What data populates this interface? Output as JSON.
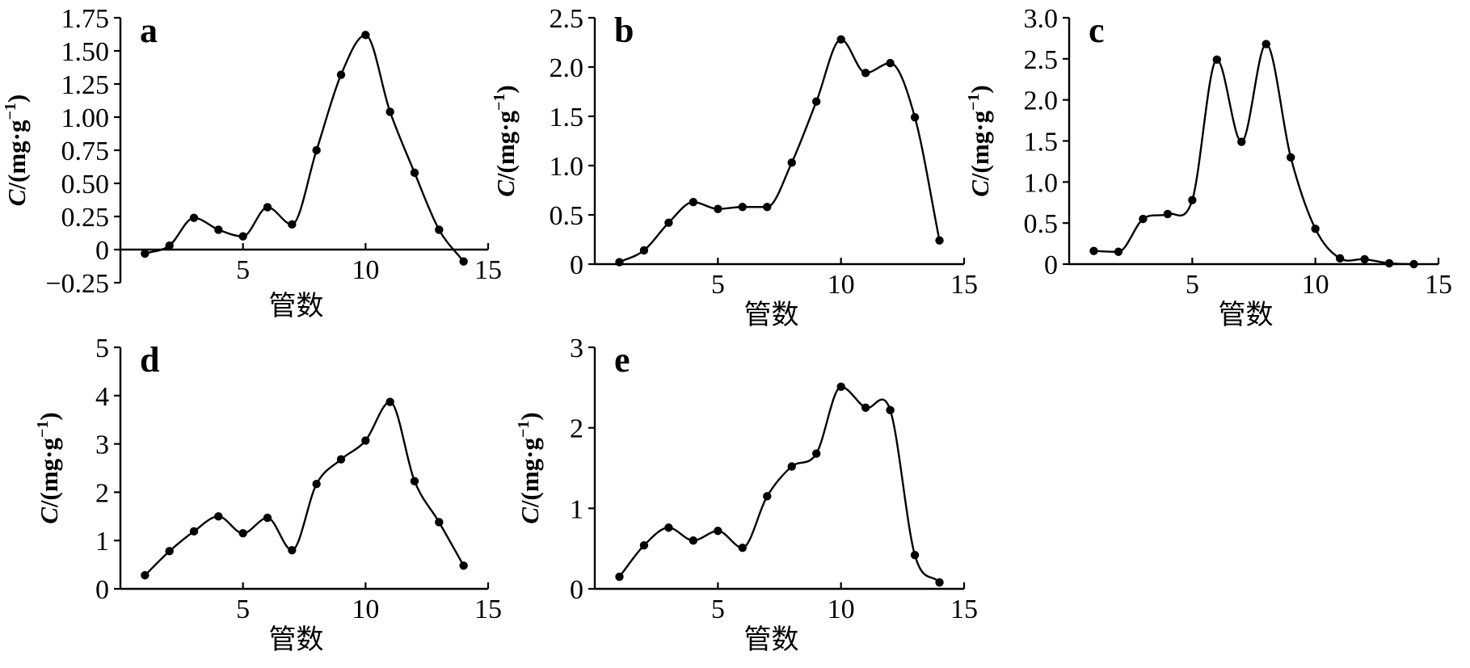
{
  "chart_data": [
    {
      "type": "line",
      "panel": "a",
      "xlabel": "管数",
      "ylabel": "C/(mg·g⁻¹)",
      "ylabel_parts": {
        "var": "C",
        "unit_base": "/(mg·g",
        "unit_exp": "−1",
        "unit_close": ")"
      },
      "xlim": [
        0,
        15
      ],
      "ylim": [
        -0.25,
        1.75
      ],
      "xticks": [
        5,
        10,
        15
      ],
      "xtick_labels": [
        "5",
        "10",
        "15"
      ],
      "yticks": [
        -0.25,
        0,
        0.25,
        0.5,
        0.75,
        1.0,
        1.25,
        1.5,
        1.75
      ],
      "ytick_labels": [
        "−0.25",
        "0",
        "0.25",
        "0.50",
        "0.75",
        "1.00",
        "1.25",
        "1.50",
        "1.75"
      ],
      "x": [
        1,
        2,
        3,
        4,
        5,
        6,
        7,
        8,
        9,
        10,
        11,
        12,
        13,
        14
      ],
      "values": [
        -0.03,
        0.03,
        0.24,
        0.15,
        0.1,
        0.32,
        0.19,
        0.75,
        1.32,
        1.62,
        1.04,
        0.58,
        0.15,
        -0.09
      ]
    },
    {
      "type": "line",
      "panel": "b",
      "xlabel": "管数",
      "ylabel": "C/(mg·g⁻¹)",
      "ylabel_parts": {
        "var": "C",
        "unit_base": "/(mg·g",
        "unit_exp": "−1",
        "unit_close": ")"
      },
      "xlim": [
        0,
        15
      ],
      "ylim": [
        0,
        2.5
      ],
      "xticks": [
        5,
        10,
        15
      ],
      "xtick_labels": [
        "5",
        "10",
        "15"
      ],
      "yticks": [
        0,
        0.5,
        1.0,
        1.5,
        2.0,
        2.5
      ],
      "ytick_labels": [
        "0",
        "0.5",
        "1.0",
        "1.5",
        "2.0",
        "2.5"
      ],
      "x": [
        1,
        2,
        3,
        4,
        5,
        6,
        7,
        8,
        9,
        10,
        11,
        12,
        13,
        14
      ],
      "values": [
        0.02,
        0.14,
        0.42,
        0.63,
        0.56,
        0.58,
        0.58,
        1.03,
        1.65,
        2.28,
        1.94,
        2.04,
        1.49,
        0.24
      ]
    },
    {
      "type": "line",
      "panel": "c",
      "xlabel": "管数",
      "ylabel": "C/(mg·g⁻¹)",
      "ylabel_parts": {
        "var": "C",
        "unit_base": "/(mg·g",
        "unit_exp": "−1",
        "unit_close": ")"
      },
      "xlim": [
        0,
        15
      ],
      "ylim": [
        0,
        3.0
      ],
      "xticks": [
        5,
        10,
        15
      ],
      "xtick_labels": [
        "5",
        "10",
        "15"
      ],
      "yticks": [
        0,
        0.5,
        1.0,
        1.5,
        2.0,
        2.5,
        3.0
      ],
      "ytick_labels": [
        "0",
        "0.5",
        "1.0",
        "1.5",
        "2.0",
        "2.5",
        "3.0"
      ],
      "x": [
        1,
        2,
        3,
        4,
        5,
        6,
        7,
        8,
        9,
        10,
        11,
        12,
        13,
        14
      ],
      "values": [
        0.16,
        0.15,
        0.55,
        0.61,
        0.78,
        2.49,
        1.49,
        2.68,
        1.3,
        0.43,
        0.07,
        0.06,
        0.01,
        0.0
      ]
    },
    {
      "type": "line",
      "panel": "d",
      "xlabel": "管数",
      "ylabel": "C/(mg·g⁻¹)",
      "ylabel_parts": {
        "var": "C",
        "unit_base": "/(mg·g",
        "unit_exp": "−1",
        "unit_close": ")"
      },
      "xlim": [
        0,
        15
      ],
      "ylim": [
        0,
        5
      ],
      "xticks": [
        5,
        10,
        15
      ],
      "xtick_labels": [
        "5",
        "10",
        "15"
      ],
      "yticks": [
        0,
        1,
        2,
        3,
        4,
        5
      ],
      "ytick_labels": [
        "0",
        "1",
        "2",
        "3",
        "4",
        "5"
      ],
      "x": [
        1,
        2,
        3,
        4,
        5,
        6,
        7,
        8,
        9,
        10,
        11,
        12,
        13,
        14
      ],
      "values": [
        0.28,
        0.78,
        1.19,
        1.5,
        1.15,
        1.47,
        0.8,
        2.17,
        2.68,
        3.07,
        3.87,
        2.23,
        1.38,
        0.48
      ]
    },
    {
      "type": "line",
      "panel": "e",
      "xlabel": "管数",
      "ylabel": "C/(mg·g⁻¹)",
      "ylabel_parts": {
        "var": "C",
        "unit_base": "/(mg·g",
        "unit_exp": "−1",
        "unit_close": ")"
      },
      "xlim": [
        0,
        15
      ],
      "ylim": [
        0,
        3
      ],
      "xticks": [
        5,
        10,
        15
      ],
      "xtick_labels": [
        "5",
        "10",
        "15"
      ],
      "yticks": [
        0,
        1,
        2,
        3
      ],
      "ytick_labels": [
        "0",
        "1",
        "2",
        "3"
      ],
      "x": [
        1,
        2,
        3,
        4,
        5,
        6,
        7,
        8,
        9,
        10,
        11,
        12,
        13,
        14
      ],
      "values": [
        0.15,
        0.54,
        0.76,
        0.6,
        0.72,
        0.51,
        1.15,
        1.52,
        1.68,
        2.51,
        2.25,
        2.22,
        0.42,
        0.08
      ]
    }
  ]
}
